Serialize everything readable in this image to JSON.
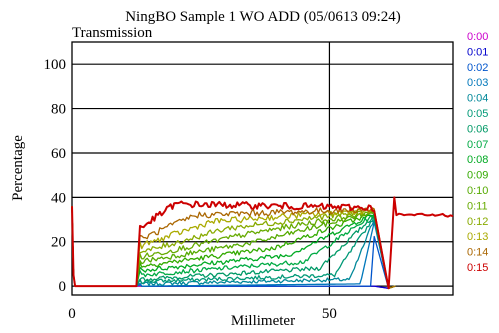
{
  "chart_data": {
    "type": "line",
    "title": "NingBO Sample 1 WO ADD (05/0613 09:24)",
    "subtitle": "Transmission",
    "xlabel": "Millimeter",
    "ylabel": "Percentage",
    "xlim": [
      0,
      74
    ],
    "ylim": [
      -4,
      110
    ],
    "x_ticks": [
      0,
      50
    ],
    "y_ticks": [
      0,
      20,
      40,
      60,
      80,
      100
    ],
    "grid": true,
    "legend_placement": "right",
    "legend_entries": [
      "0:00",
      "0:01",
      "0:02",
      "0:03",
      "0:04",
      "0:05",
      "0:06",
      "0:07",
      "0:08",
      "0:09",
      "0:10",
      "0:11",
      "0:12",
      "0:13",
      "0:14",
      "0:15"
    ],
    "series_colors": [
      "#cc00cc",
      "#0000cc",
      "#0055cc",
      "#0077bb",
      "#008899",
      "#009977",
      "#009966",
      "#00aa44",
      "#00aa22",
      "#33aa00",
      "#55aa00",
      "#66aa00",
      "#88aa00",
      "#aaaa00",
      "#aa6600",
      "#cc0000"
    ],
    "profile": {
      "pre_edge_x": [
        0,
        0.3,
        0.6
      ],
      "pre_edge_y": [
        36,
        5,
        0
      ],
      "rise_start_x": 12.5,
      "rise_end_x": 13.2,
      "plateau_end_x": 59,
      "drop_end_x": 61.5,
      "recover_x": 63,
      "tail_end_x": 74,
      "tail_y": 32
    },
    "series_levels": [
      {
        "name": "0:00",
        "start_y": 0,
        "end_y": 0,
        "knee_x": 60
      },
      {
        "name": "0:01",
        "start_y": 0,
        "end_y": 0,
        "knee_x": 59
      },
      {
        "name": "0:02",
        "start_y": 0,
        "end_y": 0,
        "knee_x": 58
      },
      {
        "name": "0:03",
        "start_y": 0,
        "end_y": 1,
        "knee_x": 56
      },
      {
        "name": "0:04",
        "start_y": 1,
        "end_y": 3,
        "knee_x": 54
      },
      {
        "name": "0:05",
        "start_y": 2,
        "end_y": 5,
        "knee_x": 51
      },
      {
        "name": "0:06",
        "start_y": 3,
        "end_y": 8,
        "knee_x": 48
      },
      {
        "name": "0:07",
        "start_y": 5,
        "end_y": 11,
        "knee_x": 45
      },
      {
        "name": "0:08",
        "start_y": 7,
        "end_y": 14,
        "knee_x": 42
      },
      {
        "name": "0:09",
        "start_y": 9,
        "end_y": 17,
        "knee_x": 39
      },
      {
        "name": "0:10",
        "start_y": 11,
        "end_y": 20,
        "knee_x": 36
      },
      {
        "name": "0:11",
        "start_y": 13,
        "end_y": 23,
        "knee_x": 33
      },
      {
        "name": "0:12",
        "start_y": 15,
        "end_y": 26,
        "knee_x": 30
      },
      {
        "name": "0:13",
        "start_y": 18,
        "end_y": 29,
        "knee_x": 27
      },
      {
        "name": "0:14",
        "start_y": 21,
        "end_y": 32,
        "knee_x": 24
      },
      {
        "name": "0:15",
        "start_y": 26,
        "end_y": 37,
        "knee_x": 20
      }
    ]
  }
}
